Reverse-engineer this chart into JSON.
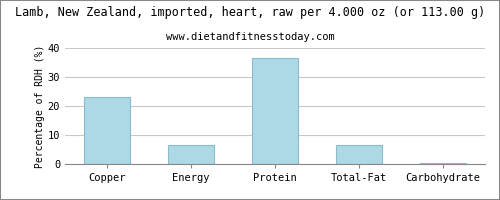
{
  "title": "Lamb, New Zealand, imported, heart, raw per 4.000 oz (or 113.00 g)",
  "subtitle": "www.dietandfitnesstoday.com",
  "categories": [
    "Copper",
    "Energy",
    "Protein",
    "Total-Fat",
    "Carbohydrate"
  ],
  "values": [
    23.0,
    6.5,
    36.5,
    6.5,
    0.5
  ],
  "bar_color": "#ADD8E6",
  "bar_edge_color": "#8bbccc",
  "ylabel": "Percentage of RDH (%)",
  "ylim": [
    0,
    40
  ],
  "yticks": [
    0,
    10,
    20,
    30,
    40
  ],
  "title_fontsize": 8.5,
  "subtitle_fontsize": 7.5,
  "ylabel_fontsize": 7,
  "tick_fontsize": 7.5,
  "background_color": "#ffffff",
  "grid_color": "#c8c8c8",
  "border_color": "#aaaaaa"
}
